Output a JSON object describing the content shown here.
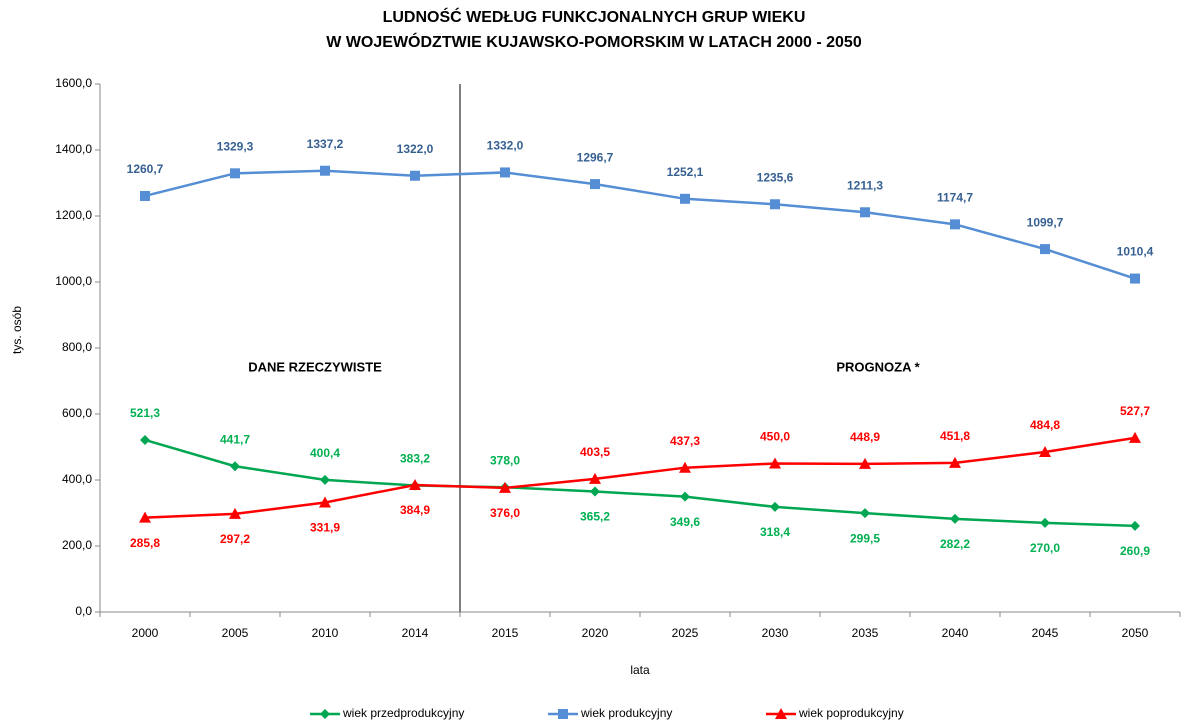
{
  "chart_data": {
    "type": "line",
    "title": [
      "LUDNOŚĆ WEDŁUG FUNKCJONALNYCH GRUP WIEKU",
      "W WOJEWÓDZTWIE KUJAWSKO-POMORSKIM W LATACH 2000 - 2050"
    ],
    "x_label": "lata",
    "y_label": "tys. osób",
    "annotations": [
      "DANE RZECZYWISTE",
      "PROGNOZA *"
    ],
    "categories": [
      "2000",
      "2005",
      "2010",
      "2014",
      "2015",
      "2020",
      "2025",
      "2030",
      "2035",
      "2040",
      "2045",
      "2050"
    ],
    "ylim": [
      0,
      1600
    ],
    "yticks": [
      {
        "value": 0,
        "label": "0,0"
      },
      {
        "value": 200,
        "label": "200,0"
      },
      {
        "value": 400,
        "label": "400,0"
      },
      {
        "value": 600,
        "label": "600,0"
      },
      {
        "value": 800,
        "label": "800,0"
      },
      {
        "value": 1000,
        "label": "1000,0"
      },
      {
        "value": 1200,
        "label": "1200,0"
      },
      {
        "value": 1400,
        "label": "1400,0"
      },
      {
        "value": 1600,
        "label": "1600,0"
      }
    ],
    "legend": "bottom",
    "series": [
      {
        "name": "wiek przedprodukcyjny",
        "color": "#00a651",
        "label_color": "#00b050",
        "marker": "diamond",
        "values": [
          521.3,
          441.7,
          400.4,
          383.2,
          378.0,
          365.2,
          349.6,
          318.4,
          299.5,
          282.2,
          270.0,
          260.9
        ],
        "value_labels": [
          "521,3",
          "441,7",
          "400,4",
          "383,2",
          "378,0",
          "365,2",
          "349,6",
          "318,4",
          "299,5",
          "282,2",
          "270,0",
          "260,9"
        ]
      },
      {
        "name": "wiek produkcyjny",
        "color": "#558ed5",
        "label_color": "#376092",
        "marker": "square",
        "values": [
          1260.7,
          1329.3,
          1337.2,
          1322.0,
          1332.0,
          1296.7,
          1252.1,
          1235.6,
          1211.3,
          1174.7,
          1099.7,
          1010.4
        ],
        "value_labels": [
          "1260,7",
          "1329,3",
          "1337,2",
          "1322,0",
          "1332,0",
          "1296,7",
          "1252,1",
          "1235,6",
          "1211,3",
          "1174,7",
          "1099,7",
          "1010,4"
        ]
      },
      {
        "name": "wiek poprodukcyjny",
        "color": "#ff0000",
        "label_color": "#ff0000",
        "marker": "triangle",
        "values": [
          285.8,
          297.2,
          331.9,
          384.9,
          376.0,
          403.5,
          437.3,
          450.0,
          448.9,
          451.8,
          484.8,
          527.7
        ],
        "value_labels": [
          "285,8",
          "297,2",
          "331,9",
          "384,9",
          "376,0",
          "403,5",
          "437,3",
          "450,0",
          "448,9",
          "451,8",
          "484,8",
          "527,7"
        ]
      }
    ]
  }
}
